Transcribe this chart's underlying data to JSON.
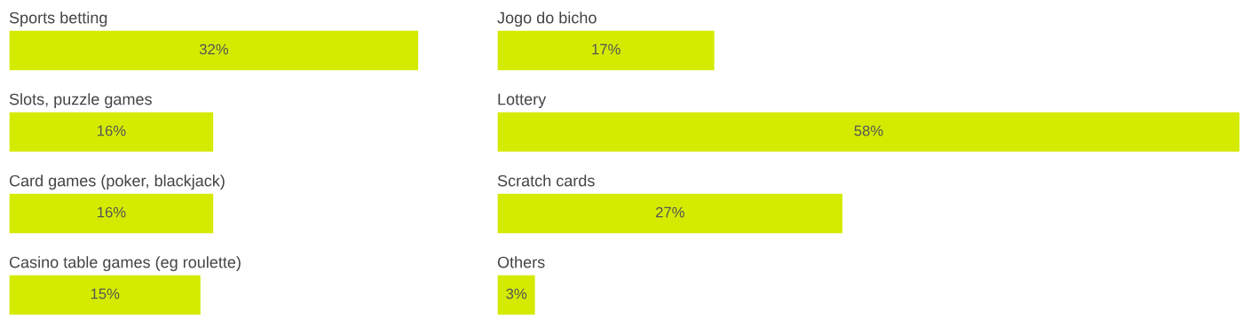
{
  "chart_data": [
    {
      "type": "bar",
      "orientation": "horizontal",
      "categories": [
        "Sports betting",
        "Slots, puzzle games",
        "Card games (poker, blackjack)",
        "Casino table games (eg roulette)"
      ],
      "series": [
        {
          "color": "#d4eb00",
          "values": [
            32,
            16,
            16,
            15
          ],
          "value_labels": [
            "32%",
            "16%",
            "16%",
            "15%"
          ]
        }
      ]
    },
    {
      "type": "bar",
      "orientation": "horizontal",
      "categories": [
        "Jogo do bicho",
        "Lottery",
        "Scratch cards",
        "Others"
      ],
      "series": [
        {
          "color": "#d4eb00",
          "values": [
            17,
            58,
            27,
            3
          ],
          "value_labels": [
            "17%",
            "58%",
            "27%",
            "3%"
          ]
        }
      ]
    }
  ]
}
